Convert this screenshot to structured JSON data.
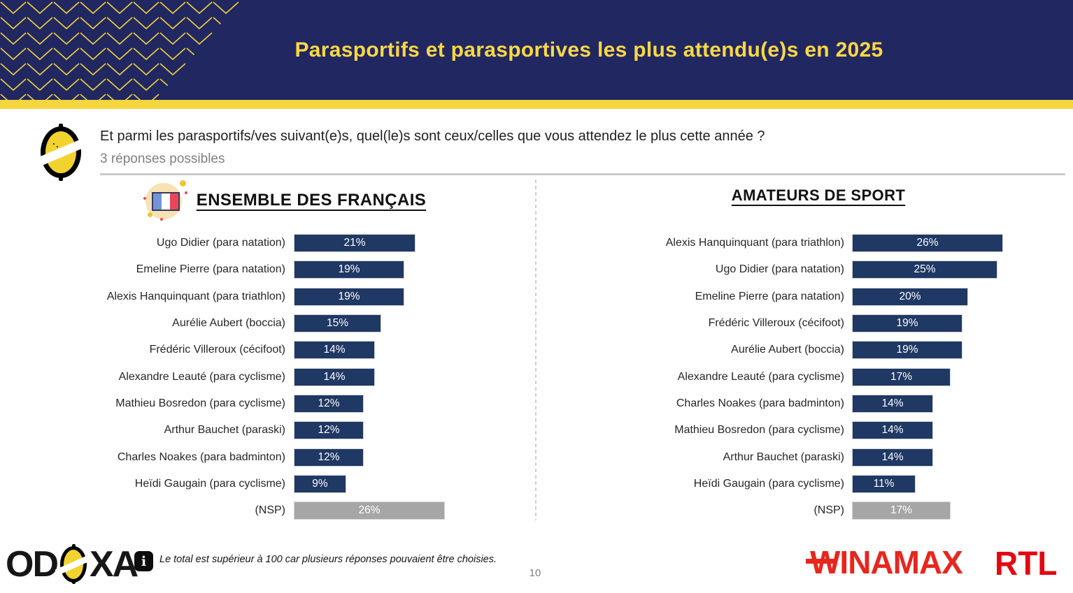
{
  "slide": {
    "title": "Parasportifs et parasportives les plus attendu(e)s en 2025",
    "page_number": "10",
    "colors": {
      "header_navy": "#212761",
      "title_yellow": "#FFD845",
      "strip_yellow": "#F5D63F",
      "bar_navy": "#1F3864",
      "nsp_gray": "#A6A6A6",
      "winamax_red": "#E6271E",
      "rtl_red": "#E30613"
    }
  },
  "question": {
    "icon": "odoxa-o-icon",
    "text": "Et parmi les parasportifs/ves suivant(e)s, quel(le)s sont ceux/celles que vous attendez le plus cette année ?",
    "note": "3 réponses possibles"
  },
  "chart_data": [
    {
      "type": "bar",
      "orientation": "horizontal",
      "title": "ENSEMBLE DES FRANÇAIS",
      "title_icon": "french-flag-icon",
      "unit": "%",
      "xlim": [
        0,
        30
      ],
      "legend": false,
      "grid": false,
      "categories": [
        "Ugo Didier (para natation)",
        "Emeline Pierre (para natation)",
        "Alexis Hanquinquant (para triathlon)",
        "Aurélie Aubert (boccia)",
        "Frédéric Villeroux (cécifoot)",
        "Alexandre Leauté (para cyclisme)",
        "Mathieu Bosredon (para cyclisme)",
        "Arthur Bauchet (paraski)",
        "Charles Noakes (para badminton)",
        "Heïdi Gaugain (para cyclisme)",
        "(NSP)"
      ],
      "values": [
        21,
        19,
        19,
        15,
        14,
        14,
        12,
        12,
        12,
        9,
        26
      ],
      "bar_color": "#1F3864",
      "nsp_color": "#A6A6A6"
    },
    {
      "type": "bar",
      "orientation": "horizontal",
      "title": "AMATEURS DE SPORT",
      "unit": "%",
      "xlim": [
        0,
        30
      ],
      "legend": false,
      "grid": false,
      "categories": [
        "Alexis Hanquinquant (para triathlon)",
        "Ugo Didier (para natation)",
        "Emeline Pierre (para natation)",
        "Frédéric Villeroux (cécifoot)",
        "Aurélie Aubert (boccia)",
        "Alexandre Leauté (para cyclisme)",
        "Charles Noakes (para badminton)",
        "Mathieu Bosredon (para cyclisme)",
        "Arthur Bauchet (paraski)",
        "Heïdi Gaugain (para cyclisme)",
        "(NSP)"
      ],
      "values": [
        26,
        25,
        20,
        19,
        19,
        17,
        14,
        14,
        14,
        11,
        17
      ],
      "bar_color": "#1F3864",
      "nsp_color": "#A6A6A6"
    }
  ],
  "footer": {
    "odoxa_left": "OD",
    "odoxa_right": "XA",
    "info_icon_glyph": "i",
    "note": "Le total est supérieur à 100 car plusieurs réponses pouvaient être choisies.",
    "winamax_w": "W",
    "winamax_rest": "INAMAX",
    "rtl_label": "RTL"
  }
}
